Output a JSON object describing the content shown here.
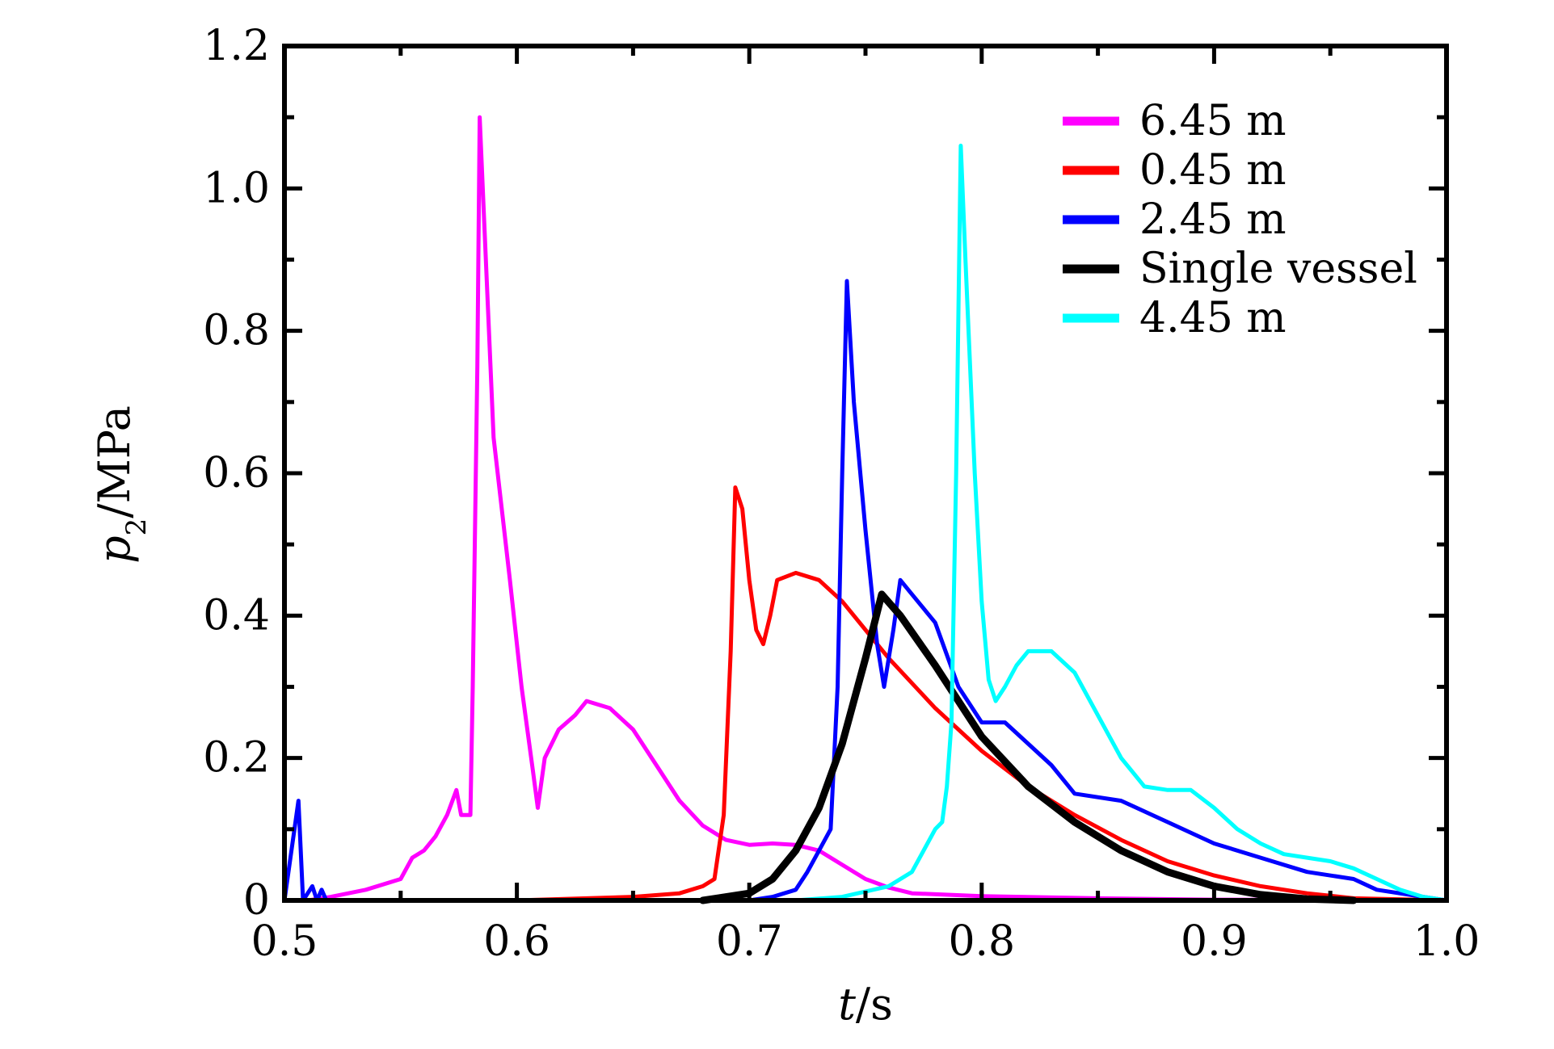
{
  "chart_data": {
    "type": "line",
    "title": "",
    "xlabel": "t/s",
    "ylabel": "p2/MPa",
    "xlabel_parts": {
      "var": "t",
      "rest": "/s"
    },
    "ylabel_parts": {
      "var": "p",
      "sub": "2",
      "rest": "/MPa"
    },
    "xlim": [
      0.5,
      1.0
    ],
    "ylim": [
      0,
      1.2
    ],
    "x_ticks": [
      {
        "value": 0.5,
        "label": "0.5"
      },
      {
        "value": 0.6,
        "label": "0.6"
      },
      {
        "value": 0.7,
        "label": "0.7"
      },
      {
        "value": 0.8,
        "label": "0.8"
      },
      {
        "value": 0.9,
        "label": "0.9"
      },
      {
        "value": 1.0,
        "label": "1.0"
      }
    ],
    "y_ticks": [
      {
        "value": 0,
        "label": "0"
      },
      {
        "value": 0.2,
        "label": "0.2"
      },
      {
        "value": 0.4,
        "label": "0.4"
      },
      {
        "value": 0.6,
        "label": "0.6"
      },
      {
        "value": 0.8,
        "label": "0.8"
      },
      {
        "value": 1.0,
        "label": "1.0"
      },
      {
        "value": 1.2,
        "label": "1.2"
      }
    ],
    "x_minor_step": 0.05,
    "y_minor_step": 0.1,
    "grid": false,
    "legend_position": "top-right",
    "series": [
      {
        "name": "6.45 m",
        "color": "#ff00ff",
        "points": [
          [
            0.51,
            0
          ],
          [
            0.52,
            0.005
          ],
          [
            0.535,
            0.015
          ],
          [
            0.55,
            0.03
          ],
          [
            0.555,
            0.06
          ],
          [
            0.56,
            0.07
          ],
          [
            0.565,
            0.09
          ],
          [
            0.57,
            0.12
          ],
          [
            0.574,
            0.155
          ],
          [
            0.576,
            0.12
          ],
          [
            0.58,
            0.12
          ],
          [
            0.581,
            0.3
          ],
          [
            0.583,
            0.75
          ],
          [
            0.584,
            1.1
          ],
          [
            0.586,
            0.95
          ],
          [
            0.59,
            0.65
          ],
          [
            0.597,
            0.45
          ],
          [
            0.602,
            0.3
          ],
          [
            0.607,
            0.18
          ],
          [
            0.609,
            0.13
          ],
          [
            0.612,
            0.2
          ],
          [
            0.618,
            0.24
          ],
          [
            0.625,
            0.26
          ],
          [
            0.63,
            0.28
          ],
          [
            0.64,
            0.27
          ],
          [
            0.65,
            0.24
          ],
          [
            0.66,
            0.19
          ],
          [
            0.67,
            0.14
          ],
          [
            0.68,
            0.105
          ],
          [
            0.69,
            0.085
          ],
          [
            0.7,
            0.078
          ],
          [
            0.71,
            0.08
          ],
          [
            0.72,
            0.078
          ],
          [
            0.73,
            0.07
          ],
          [
            0.74,
            0.05
          ],
          [
            0.75,
            0.03
          ],
          [
            0.76,
            0.018
          ],
          [
            0.77,
            0.01
          ],
          [
            0.8,
            0.006
          ],
          [
            0.85,
            0.003
          ],
          [
            0.9,
            0.001
          ],
          [
            1.0,
            0
          ]
        ]
      },
      {
        "name": "0.45 m",
        "color": "#ff0000",
        "points": [
          [
            0.6,
            0
          ],
          [
            0.65,
            0.005
          ],
          [
            0.67,
            0.01
          ],
          [
            0.68,
            0.02
          ],
          [
            0.685,
            0.03
          ],
          [
            0.689,
            0.12
          ],
          [
            0.692,
            0.35
          ],
          [
            0.694,
            0.58
          ],
          [
            0.697,
            0.55
          ],
          [
            0.7,
            0.45
          ],
          [
            0.703,
            0.38
          ],
          [
            0.706,
            0.36
          ],
          [
            0.709,
            0.4
          ],
          [
            0.712,
            0.45
          ],
          [
            0.72,
            0.46
          ],
          [
            0.73,
            0.45
          ],
          [
            0.74,
            0.42
          ],
          [
            0.75,
            0.38
          ],
          [
            0.76,
            0.34
          ],
          [
            0.78,
            0.27
          ],
          [
            0.8,
            0.21
          ],
          [
            0.82,
            0.16
          ],
          [
            0.84,
            0.12
          ],
          [
            0.86,
            0.085
          ],
          [
            0.88,
            0.055
          ],
          [
            0.9,
            0.035
          ],
          [
            0.92,
            0.02
          ],
          [
            0.94,
            0.01
          ],
          [
            0.96,
            0.003
          ],
          [
            1.0,
            0
          ]
        ]
      },
      {
        "name": "2.45 m",
        "color": "#0000ff",
        "points": [
          [
            0.5,
            0
          ],
          [
            0.506,
            0.14
          ],
          [
            0.508,
            0
          ],
          [
            0.512,
            0.02
          ],
          [
            0.514,
            0
          ],
          [
            0.516,
            0.015
          ],
          [
            0.518,
            0
          ],
          [
            0.52,
            0
          ],
          [
            0.7,
            0
          ],
          [
            0.71,
            0.005
          ],
          [
            0.72,
            0.015
          ],
          [
            0.725,
            0.04
          ],
          [
            0.73,
            0.07
          ],
          [
            0.735,
            0.1
          ],
          [
            0.738,
            0.3
          ],
          [
            0.74,
            0.6
          ],
          [
            0.742,
            0.87
          ],
          [
            0.745,
            0.7
          ],
          [
            0.75,
            0.52
          ],
          [
            0.755,
            0.36
          ],
          [
            0.758,
            0.3
          ],
          [
            0.762,
            0.38
          ],
          [
            0.765,
            0.45
          ],
          [
            0.77,
            0.43
          ],
          [
            0.78,
            0.39
          ],
          [
            0.79,
            0.3
          ],
          [
            0.8,
            0.25
          ],
          [
            0.81,
            0.25
          ],
          [
            0.82,
            0.22
          ],
          [
            0.83,
            0.19
          ],
          [
            0.84,
            0.15
          ],
          [
            0.86,
            0.14
          ],
          [
            0.88,
            0.11
          ],
          [
            0.9,
            0.08
          ],
          [
            0.92,
            0.06
          ],
          [
            0.94,
            0.04
          ],
          [
            0.96,
            0.03
          ],
          [
            0.97,
            0.015
          ],
          [
            0.99,
            0.005
          ],
          [
            1.0,
            0
          ]
        ]
      },
      {
        "name": "Single vessel",
        "color": "#000000",
        "points": [
          [
            0.68,
            0
          ],
          [
            0.7,
            0.01
          ],
          [
            0.71,
            0.03
          ],
          [
            0.72,
            0.07
          ],
          [
            0.73,
            0.13
          ],
          [
            0.74,
            0.22
          ],
          [
            0.75,
            0.34
          ],
          [
            0.757,
            0.43
          ],
          [
            0.765,
            0.4
          ],
          [
            0.78,
            0.33
          ],
          [
            0.79,
            0.28
          ],
          [
            0.8,
            0.23
          ],
          [
            0.82,
            0.16
          ],
          [
            0.84,
            0.11
          ],
          [
            0.86,
            0.07
          ],
          [
            0.88,
            0.04
          ],
          [
            0.9,
            0.02
          ],
          [
            0.92,
            0.008
          ],
          [
            0.94,
            0.002
          ],
          [
            0.96,
            0
          ]
        ]
      },
      {
        "name": "4.45 m",
        "color": "#00ffff",
        "points": [
          [
            0.72,
            0
          ],
          [
            0.74,
            0.005
          ],
          [
            0.76,
            0.02
          ],
          [
            0.77,
            0.04
          ],
          [
            0.775,
            0.07
          ],
          [
            0.78,
            0.1
          ],
          [
            0.783,
            0.11
          ],
          [
            0.785,
            0.16
          ],
          [
            0.787,
            0.25
          ],
          [
            0.789,
            0.6
          ],
          [
            0.791,
            1.06
          ],
          [
            0.793,
            0.9
          ],
          [
            0.797,
            0.6
          ],
          [
            0.8,
            0.42
          ],
          [
            0.803,
            0.31
          ],
          [
            0.806,
            0.28
          ],
          [
            0.81,
            0.3
          ],
          [
            0.815,
            0.33
          ],
          [
            0.82,
            0.35
          ],
          [
            0.83,
            0.35
          ],
          [
            0.84,
            0.32
          ],
          [
            0.85,
            0.26
          ],
          [
            0.86,
            0.2
          ],
          [
            0.87,
            0.16
          ],
          [
            0.88,
            0.155
          ],
          [
            0.89,
            0.155
          ],
          [
            0.9,
            0.13
          ],
          [
            0.91,
            0.1
          ],
          [
            0.92,
            0.08
          ],
          [
            0.93,
            0.065
          ],
          [
            0.94,
            0.06
          ],
          [
            0.95,
            0.055
          ],
          [
            0.96,
            0.045
          ],
          [
            0.97,
            0.03
          ],
          [
            0.98,
            0.015
          ],
          [
            0.99,
            0.005
          ],
          [
            1.0,
            0
          ]
        ]
      }
    ]
  }
}
